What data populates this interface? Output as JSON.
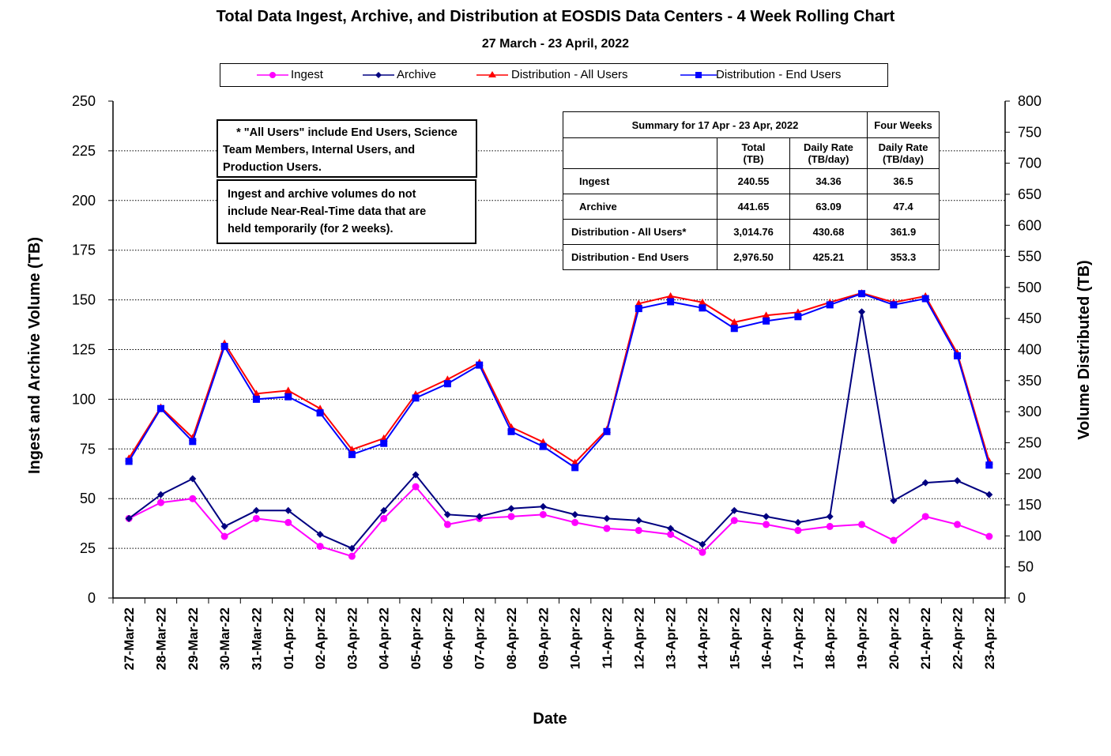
{
  "chart_data": {
    "type": "line",
    "title": "Total Data Ingest, Archive, and  Distribution at EOSDIS Data Centers - 4 Week Rolling Chart",
    "subtitle": "27  March   -  23  April,  2022",
    "xlabel": "Date",
    "ylabel_left": "Ingest and Archive Volume (TB)",
    "ylabel_right": "Volume Distributed (TB)",
    "ylim_left": [
      0,
      250
    ],
    "ylim_right": [
      0,
      800
    ],
    "yticks_left": [
      "0",
      "25",
      "50",
      "75",
      "100",
      "125",
      "150",
      "175",
      "200",
      "225",
      "250"
    ],
    "yticks_right": [
      "0",
      "50",
      "100",
      "150",
      "200",
      "250",
      "300",
      "350",
      "400",
      "450",
      "500",
      "550",
      "600",
      "650",
      "700",
      "750",
      "800"
    ],
    "categories": [
      "27-Mar-22",
      "28-Mar-22",
      "29-Mar-22",
      "30-Mar-22",
      "31-Mar-22",
      "01-Apr-22",
      "02-Apr-22",
      "03-Apr-22",
      "04-Apr-22",
      "05-Apr-22",
      "06-Apr-22",
      "07-Apr-22",
      "08-Apr-22",
      "09-Apr-22",
      "10-Apr-22",
      "11-Apr-22",
      "12-Apr-22",
      "13-Apr-22",
      "14-Apr-22",
      "15-Apr-22",
      "16-Apr-22",
      "17-Apr-22",
      "18-Apr-22",
      "19-Apr-22",
      "20-Apr-22",
      "21-Apr-22",
      "22-Apr-22",
      "23-Apr-22"
    ],
    "series": [
      {
        "name": "Ingest",
        "axis": "left",
        "color": "#ff00ff",
        "marker": "circle",
        "values": [
          40,
          48,
          50,
          31,
          40,
          38,
          26,
          21,
          40,
          56,
          37,
          40,
          41,
          42,
          38,
          35,
          34,
          32,
          23,
          39,
          37,
          34,
          36,
          37,
          29,
          41,
          37,
          31
        ]
      },
      {
        "name": "Archive",
        "axis": "left",
        "color": "#000080",
        "marker": "diamond",
        "values": [
          40,
          52,
          60,
          36,
          44,
          44,
          32,
          25,
          44,
          62,
          42,
          41,
          45,
          46,
          42,
          40,
          39,
          35,
          27,
          44,
          41,
          38,
          41,
          144,
          49,
          58,
          59,
          52
        ]
      },
      {
        "name": "Distribution - All Users",
        "axis": "right",
        "color": "#ff0000",
        "marker": "triangle",
        "values": [
          225,
          307,
          258,
          410,
          329,
          334,
          305,
          239,
          257,
          328,
          352,
          379,
          275,
          251,
          218,
          271,
          474,
          486,
          476,
          444,
          455,
          460,
          476,
          491,
          476,
          486,
          394,
          220
        ]
      },
      {
        "name": "Distribution - End Users",
        "axis": "right",
        "color": "#0000ff",
        "marker": "square",
        "values": [
          220,
          305,
          252,
          405,
          320,
          324,
          298,
          231,
          249,
          322,
          345,
          375,
          268,
          244,
          210,
          268,
          466,
          477,
          467,
          434,
          446,
          453,
          472,
          490,
          472,
          482,
          390,
          214
        ]
      }
    ]
  },
  "notes": {
    "note1_line1": "* \"All Users\" include End Users, Science",
    "note1_line2": "Team Members,  Internal Users, and",
    "note1_line3": "Production Users.",
    "note2_line1": "Ingest and archive volumes do not",
    "note2_line2": "include Near-Real-Time data that are",
    "note2_line3": "held temporarily (for 2 weeks)."
  },
  "summary": {
    "title": "Summary  for  17  Apr   -  23  Apr,  2022",
    "four_weeks": "Four Weeks",
    "col_total": "Total",
    "col_total_unit": "(TB)",
    "col_daily": "Daily Rate",
    "col_daily_unit": "(TB/day)",
    "col_fw_daily": "Daily Rate",
    "col_fw_unit": "(TB/day)",
    "rows": [
      {
        "label": "Ingest",
        "total": "240.55",
        "daily": "34.36",
        "fw": "36.5"
      },
      {
        "label": "Archive",
        "total": "441.65",
        "daily": "63.09",
        "fw": "47.4"
      },
      {
        "label": "Distribution - All Users*",
        "total": "3,014.76",
        "daily": "430.68",
        "fw": "361.9"
      },
      {
        "label": "Distribution - End Users",
        "total": "2,976.50",
        "daily": "425.21",
        "fw": "353.3"
      }
    ]
  }
}
